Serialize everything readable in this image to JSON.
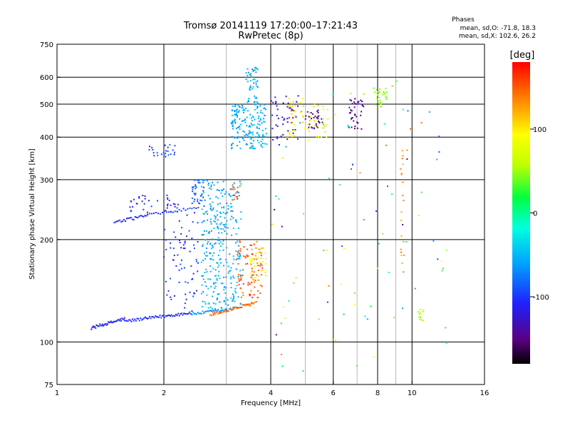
{
  "header": {
    "title": "Tromsø 20141119 17:20:00–17:21:43",
    "subtitle": "RwPretec (8p)"
  },
  "phases": {
    "title": "Phases",
    "line_o": "mean, sd,O: -71.8, 18.3",
    "line_x": "mean, sd,X: 102.6, 26.2"
  },
  "colorbar": {
    "label": "[deg]",
    "range": [
      -180,
      180
    ],
    "ticks": [
      {
        "value": 100,
        "label": "100"
      },
      {
        "value": 0,
        "label": "0"
      },
      {
        "value": -100,
        "label": "-100"
      }
    ]
  },
  "chart_data": {
    "type": "scatter",
    "xlabel": "Frequency [MHz]",
    "ylabel": "Stationary phase Virtual Height [km]",
    "xscale": "log2",
    "yscale": "log",
    "xlim": [
      1,
      16
    ],
    "ylim": [
      75,
      750
    ],
    "x_ticks": [
      {
        "value": 1,
        "label": "1"
      },
      {
        "value": 2,
        "label": "2"
      },
      {
        "value": 4,
        "label": "4"
      },
      {
        "value": 6,
        "label": "6"
      },
      {
        "value": 8,
        "label": "8"
      },
      {
        "value": 10,
        "label": "10"
      },
      {
        "value": 16,
        "label": "16"
      }
    ],
    "y_ticks": [
      {
        "value": 75,
        "label": "75"
      },
      {
        "value": 100,
        "label": "100"
      },
      {
        "value": 200,
        "label": "200"
      },
      {
        "value": 300,
        "label": "300"
      },
      {
        "value": 400,
        "label": "400"
      },
      {
        "value": 500,
        "label": "500"
      },
      {
        "value": 600,
        "label": "600"
      },
      {
        "value": 750,
        "label": "750"
      }
    ],
    "x_grid": [
      2,
      4,
      6,
      8,
      10
    ],
    "x_grid_light": [
      3,
      5,
      7,
      9
    ],
    "y_grid": [
      100,
      200,
      300,
      400,
      500,
      600
    ],
    "grid": true,
    "point_clusters": [
      {
        "x": [
          1.25,
          1.55
        ],
        "h": [
          110,
          117
        ],
        "phase": -110,
        "n": 40,
        "trace": true
      },
      {
        "x": [
          1.55,
          2.4
        ],
        "h": [
          115,
          122
        ],
        "phase": -105,
        "n": 60,
        "trace": true
      },
      {
        "x": [
          2.4,
          3.0
        ],
        "h": [
          121,
          124
        ],
        "phase": -65,
        "n": 30,
        "trace": true
      },
      {
        "x": [
          2.7,
          3.6
        ],
        "h": [
          120,
          130
        ],
        "phase": 145,
        "n": 50,
        "trace": true
      },
      {
        "x": [
          1.45,
          1.8
        ],
        "h": [
          224,
          236
        ],
        "phase": -105,
        "n": 25,
        "trace": true
      },
      {
        "x": [
          1.8,
          2.5
        ],
        "h": [
          236,
          248
        ],
        "phase": -100,
        "n": 25,
        "trace": true
      },
      {
        "x": [
          1.6,
          2.2
        ],
        "h": [
          240,
          270
        ],
        "phase": -110,
        "n": 35
      },
      {
        "x": [
          2.0,
          2.5
        ],
        "h": [
          125,
          250
        ],
        "phase": -100,
        "n": 70
      },
      {
        "x": [
          2.4,
          2.6
        ],
        "h": [
          250,
          300
        ],
        "phase": -88,
        "n": 35
      },
      {
        "x": [
          2.55,
          3.3
        ],
        "h": [
          125,
          300
        ],
        "phase": -55,
        "n": 320
      },
      {
        "x": [
          3.2,
          3.8
        ],
        "h": [
          130,
          200
        ],
        "phase": 150,
        "n": 90
      },
      {
        "x": [
          3.5,
          3.9
        ],
        "h": [
          150,
          190
        ],
        "phase": 95,
        "n": 35
      },
      {
        "x": [
          3.1,
          3.3
        ],
        "h": [
          260,
          290
        ],
        "phase": 150,
        "n": 12
      },
      {
        "x": [
          3.1,
          3.9
        ],
        "h": [
          370,
          500
        ],
        "phase": -55,
        "n": 180
      },
      {
        "x": [
          3.4,
          3.7
        ],
        "h": [
          500,
          650
        ],
        "phase": -55,
        "n": 50
      },
      {
        "x": [
          1.8,
          2.2
        ],
        "h": [
          350,
          380
        ],
        "phase": -95,
        "n": 25
      },
      {
        "x": [
          4.0,
          4.8
        ],
        "h": [
          390,
          530
        ],
        "phase": -125,
        "n": 45
      },
      {
        "x": [
          4.4,
          5.8
        ],
        "h": [
          400,
          520
        ],
        "phase": 100,
        "n": 70
      },
      {
        "x": [
          5.0,
          5.6
        ],
        "h": [
          420,
          480
        ],
        "phase": -140,
        "n": 30
      },
      {
        "x": [
          6.5,
          7.3
        ],
        "h": [
          420,
          520
        ],
        "phase": -145,
        "n": 40
      },
      {
        "x": [
          7.8,
          8.5
        ],
        "h": [
          490,
          560
        ],
        "phase": 50,
        "n": 30
      },
      {
        "x": [
          10.4,
          10.8
        ],
        "h": [
          115,
          125
        ],
        "phase": 50,
        "n": 12
      },
      {
        "x": [
          9.3,
          9.5
        ],
        "h": [
          160,
          400
        ],
        "phase": 130,
        "n": 20
      },
      {
        "x": [
          4.0,
          13.0
        ],
        "h": [
          80,
          600
        ],
        "phase": 40,
        "n": 90,
        "sparse": true
      }
    ]
  }
}
